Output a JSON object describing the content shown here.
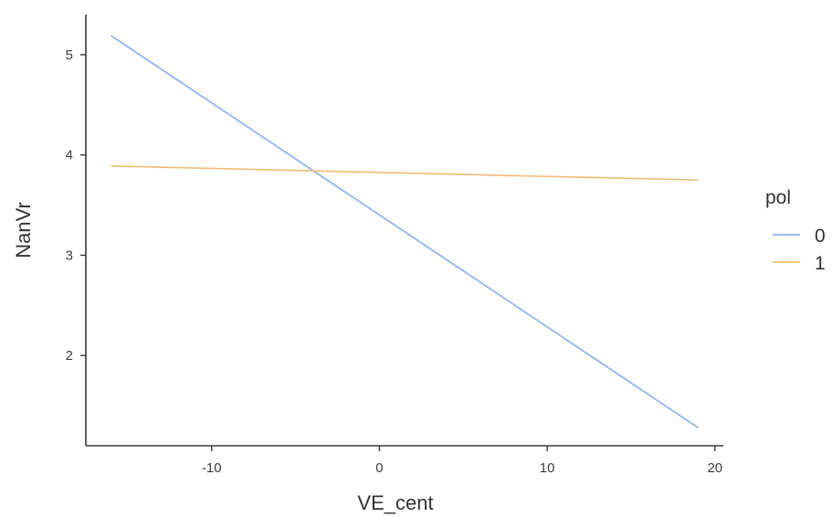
{
  "chart_data": {
    "type": "line",
    "xlabel": "VE_cent",
    "ylabel": "NanVr",
    "xlim": [
      -17.5,
      20.5
    ],
    "ylim": [
      1.1,
      5.4
    ],
    "xticks": [
      -10,
      0,
      10,
      20
    ],
    "yticks": [
      2,
      3,
      4,
      5
    ],
    "xtick_labels": [
      "-10",
      "0",
      "10",
      "20"
    ],
    "ytick_labels": [
      "2",
      "3",
      "4",
      "5"
    ],
    "grid": false,
    "legend": {
      "title": "pol",
      "position": "right"
    },
    "series": [
      {
        "name": "0",
        "color": "#8eb2ee",
        "x": [
          -16,
          19
        ],
        "y": [
          5.19,
          1.28
        ]
      },
      {
        "name": "1",
        "color": "#ecc07a",
        "x": [
          -16,
          19
        ],
        "y": [
          3.89,
          3.75
        ]
      }
    ]
  }
}
